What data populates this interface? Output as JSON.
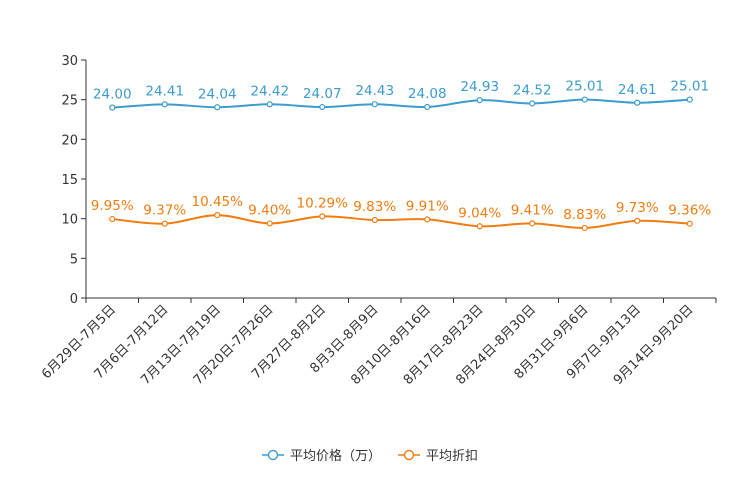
{
  "chart_data": {
    "type": "line",
    "title": "",
    "xlabel": "",
    "ylabel": "",
    "ylim": [
      0,
      30
    ],
    "yticks": [
      0,
      5,
      10,
      15,
      20,
      25,
      30
    ],
    "grid": false,
    "legend_position": "bottom-center",
    "categories": [
      "6月29日-7月5日",
      "7月6日-7月12日",
      "7月13日-7月19日",
      "7月20日-7月26日",
      "7月27日-8月2日",
      "8月3日-8月9日",
      "8月10日-8月16日",
      "8月17日-8月23日",
      "8月24日-8月30日",
      "8月31日-9月6日",
      "9月7日-9月13日",
      "9月14日-9月20日"
    ],
    "series": [
      {
        "name": "平均价格（万）",
        "color": "#3b9ccd",
        "values": [
          24.0,
          24.41,
          24.04,
          24.42,
          24.07,
          24.43,
          24.08,
          24.93,
          24.52,
          25.01,
          24.61,
          25.01
        ],
        "labels": [
          "24.00",
          "24.41",
          "24.04",
          "24.42",
          "24.07",
          "24.43",
          "24.08",
          "24.93",
          "24.52",
          "25.01",
          "24.61",
          "25.01"
        ]
      },
      {
        "name": "平均折扣",
        "color": "#f07c12",
        "values": [
          9.95,
          9.37,
          10.45,
          9.4,
          10.29,
          9.83,
          9.91,
          9.04,
          9.41,
          8.83,
          9.73,
          9.36
        ],
        "labels": [
          "9.95%",
          "9.37%",
          "10.45%",
          "9.40%",
          "10.29%",
          "9.83%",
          "9.91%",
          "9.04%",
          "9.41%",
          "8.83%",
          "9.73%",
          "9.36%"
        ]
      }
    ]
  }
}
